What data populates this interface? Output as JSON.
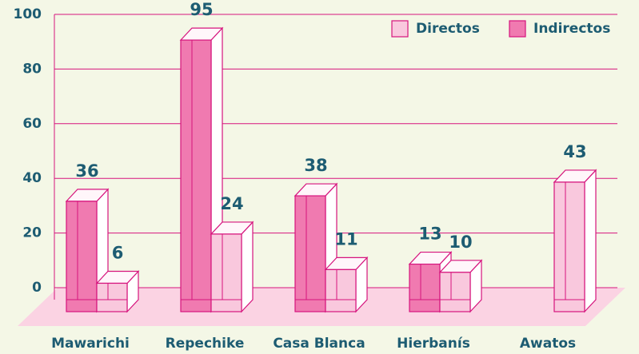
{
  "chart_data": {
    "type": "bar3d",
    "categories": [
      "Mawarichi",
      "Repechike",
      "Casa Blanca",
      "Hierbanís",
      "Awatos"
    ],
    "series": [
      {
        "name": "Indirectos",
        "color": "#f07ab0",
        "values": [
          36,
          95,
          38,
          13,
          null
        ]
      },
      {
        "name": "Directos",
        "color": "#f9c8dd",
        "values": [
          6,
          24,
          11,
          10,
          43
        ]
      }
    ],
    "ylim": [
      0,
      100
    ],
    "yticks": [
      0,
      20,
      40,
      60,
      80,
      100
    ],
    "grid": true,
    "legend": "top-right"
  }
}
